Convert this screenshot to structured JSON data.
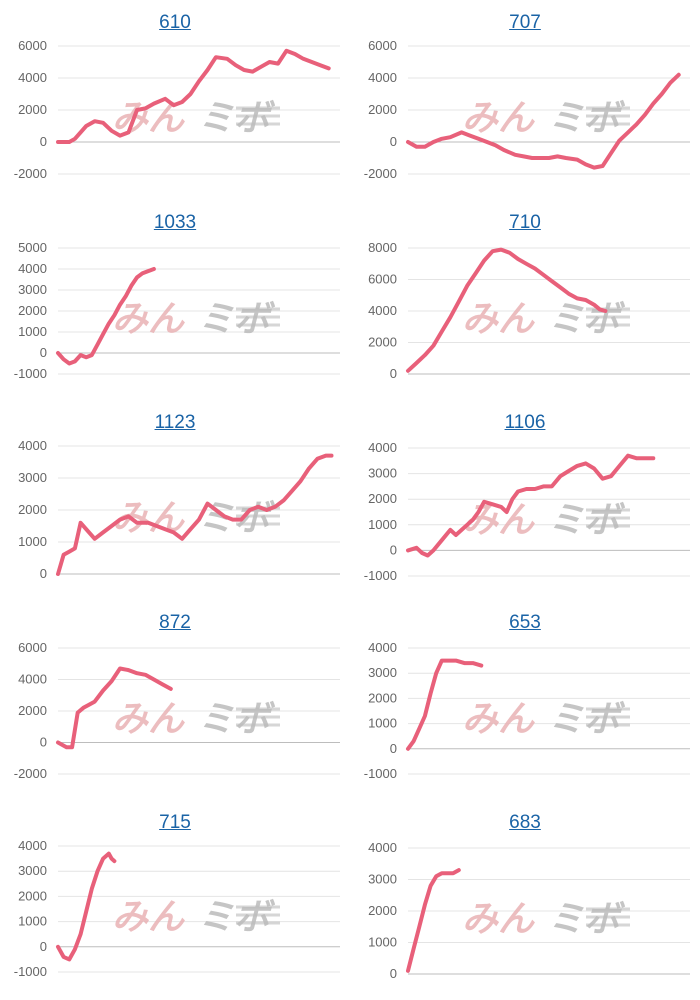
{
  "colors": {
    "line": "#e8607a",
    "grid": "#e4e4e4",
    "baseline": "#bdbdbd",
    "title": "#1a63a6",
    "watermark_pink": "#e9b2b5",
    "watermark_gray": "#bcbcbc"
  },
  "watermark": {
    "text_pink": "みん",
    "text_gray": "ミボ"
  },
  "chart_data": [
    {
      "type": "line",
      "title": "610",
      "ylim": [
        -2000,
        6000
      ],
      "yticks": [
        -2000,
        0,
        2000,
        4000,
        6000
      ],
      "xlim": [
        0,
        100
      ],
      "x": [
        0,
        4,
        6,
        10,
        13,
        16,
        19,
        22,
        25,
        28,
        31,
        34,
        38,
        41,
        44,
        47,
        50,
        53,
        56,
        60,
        63,
        66,
        69,
        72,
        75,
        78,
        81,
        84,
        87,
        90,
        93,
        96
      ],
      "y": [
        0,
        0,
        200,
        1000,
        1300,
        1200,
        700,
        400,
        600,
        2000,
        2100,
        2400,
        2700,
        2300,
        2500,
        3000,
        3800,
        4500,
        5300,
        5200,
        4800,
        4500,
        4400,
        4700,
        5000,
        4900,
        5700,
        5500,
        5200,
        5000,
        4800,
        4600
      ]
    },
    {
      "type": "line",
      "title": "707",
      "ylim": [
        -2000,
        6000
      ],
      "yticks": [
        -2000,
        0,
        2000,
        4000,
        6000
      ],
      "xlim": [
        0,
        100
      ],
      "x": [
        0,
        3,
        6,
        9,
        12,
        15,
        19,
        22,
        25,
        28,
        31,
        34,
        38,
        41,
        44,
        47,
        50,
        53,
        56,
        60,
        63,
        66,
        69,
        72,
        75,
        78,
        81,
        84,
        87,
        90,
        93,
        96
      ],
      "y": [
        0,
        -300,
        -300,
        0,
        200,
        300,
        600,
        400,
        200,
        0,
        -200,
        -500,
        -800,
        -900,
        -1000,
        -1000,
        -1000,
        -900,
        -1000,
        -1100,
        -1400,
        -1600,
        -1500,
        -700,
        100,
        600,
        1100,
        1700,
        2400,
        3000,
        3700,
        4200
      ]
    },
    {
      "type": "line",
      "title": "1033",
      "ylim": [
        -1000,
        5000
      ],
      "yticks": [
        -1000,
        0,
        1000,
        2000,
        3000,
        4000,
        5000
      ],
      "xlim": [
        0,
        100
      ],
      "x": [
        0,
        2,
        4,
        6,
        8,
        10,
        12,
        14,
        16,
        18,
        20,
        22,
        24,
        26,
        28,
        30,
        32,
        34
      ],
      "y": [
        0,
        -300,
        -500,
        -400,
        -100,
        -200,
        -100,
        400,
        900,
        1400,
        1800,
        2300,
        2700,
        3200,
        3600,
        3800,
        3900,
        4000
      ]
    },
    {
      "type": "line",
      "title": "710",
      "ylim": [
        0,
        8000
      ],
      "yticks": [
        0,
        2000,
        4000,
        6000,
        8000
      ],
      "xlim": [
        0,
        100
      ],
      "x": [
        0,
        3,
        6,
        9,
        12,
        15,
        18,
        21,
        24,
        27,
        30,
        33,
        36,
        39,
        42,
        45,
        48,
        51,
        54,
        57,
        60,
        63,
        66,
        68,
        70
      ],
      "y": [
        200,
        700,
        1200,
        1800,
        2700,
        3600,
        4600,
        5600,
        6400,
        7200,
        7800,
        7900,
        7700,
        7300,
        7000,
        6700,
        6300,
        5900,
        5500,
        5100,
        4800,
        4700,
        4400,
        4100,
        4000
      ]
    },
    {
      "type": "line",
      "title": "1123",
      "ylim": [
        0,
        4000
      ],
      "yticks": [
        0,
        1000,
        2000,
        3000,
        4000
      ],
      "xlim": [
        0,
        100
      ],
      "x": [
        0,
        2,
        4,
        6,
        8,
        10,
        13,
        16,
        19,
        22,
        25,
        28,
        32,
        35,
        38,
        41,
        44,
        47,
        50,
        53,
        56,
        59,
        62,
        65,
        68,
        71,
        74,
        77,
        80,
        83,
        86,
        89,
        92,
        95,
        97
      ],
      "y": [
        0,
        600,
        700,
        800,
        1600,
        1400,
        1100,
        1300,
        1500,
        1700,
        1800,
        1600,
        1600,
        1500,
        1400,
        1300,
        1100,
        1400,
        1700,
        2200,
        2000,
        1800,
        1700,
        1700,
        2000,
        2100,
        2000,
        2100,
        2300,
        2600,
        2900,
        3300,
        3600,
        3700,
        3700
      ]
    },
    {
      "type": "line",
      "title": "1106",
      "ylim": [
        -1000,
        4000
      ],
      "yticks": [
        -1000,
        0,
        1000,
        2000,
        3000,
        4000
      ],
      "xlim": [
        0,
        100
      ],
      "x": [
        0,
        3,
        5,
        7,
        9,
        12,
        15,
        17,
        19,
        21,
        23,
        25,
        27,
        30,
        33,
        35,
        37,
        39,
        42,
        45,
        48,
        51,
        54,
        57,
        60,
        63,
        66,
        69,
        72,
        75,
        78,
        81,
        84,
        87
      ],
      "y": [
        0,
        100,
        -100,
        -200,
        0,
        400,
        800,
        600,
        800,
        1000,
        1200,
        1500,
        1900,
        1800,
        1700,
        1500,
        2000,
        2300,
        2400,
        2400,
        2500,
        2500,
        2900,
        3100,
        3300,
        3400,
        3200,
        2800,
        2900,
        3300,
        3700,
        3600,
        3600,
        3600
      ]
    },
    {
      "type": "line",
      "title": "872",
      "ylim": [
        -2000,
        6000
      ],
      "yticks": [
        -2000,
        0,
        2000,
        4000,
        6000
      ],
      "xlim": [
        0,
        100
      ],
      "x": [
        0,
        3,
        5,
        7,
        9,
        11,
        13,
        16,
        19,
        22,
        25,
        28,
        31,
        34,
        37,
        40
      ],
      "y": [
        0,
        -300,
        -300,
        1900,
        2200,
        2400,
        2600,
        3300,
        3900,
        4700,
        4600,
        4400,
        4300,
        4000,
        3700,
        3400
      ]
    },
    {
      "type": "line",
      "title": "653",
      "ylim": [
        -1000,
        4000
      ],
      "yticks": [
        -1000,
        0,
        1000,
        2000,
        3000,
        4000
      ],
      "xlim": [
        0,
        100
      ],
      "x": [
        0,
        2,
        4,
        6,
        8,
        10,
        12,
        14,
        17,
        20,
        23,
        26
      ],
      "y": [
        0,
        300,
        800,
        1300,
        2200,
        3000,
        3500,
        3500,
        3500,
        3400,
        3400,
        3300
      ]
    },
    {
      "type": "line",
      "title": "715",
      "ylim": [
        -1000,
        4000
      ],
      "yticks": [
        -1000,
        0,
        1000,
        2000,
        3000,
        4000
      ],
      "xlim": [
        0,
        100
      ],
      "x": [
        0,
        2,
        4,
        6,
        8,
        10,
        12,
        14,
        16,
        18,
        19,
        20
      ],
      "y": [
        0,
        -400,
        -500,
        -100,
        500,
        1400,
        2300,
        3000,
        3500,
        3700,
        3500,
        3400
      ]
    },
    {
      "type": "line",
      "title": "683",
      "ylim": [
        0,
        4000
      ],
      "yticks": [
        0,
        1000,
        2000,
        3000,
        4000
      ],
      "xlim": [
        0,
        100
      ],
      "x": [
        0,
        2,
        4,
        6,
        8,
        10,
        12,
        14,
        16,
        18
      ],
      "y": [
        100,
        800,
        1500,
        2200,
        2800,
        3100,
        3200,
        3200,
        3200,
        3300
      ]
    }
  ]
}
